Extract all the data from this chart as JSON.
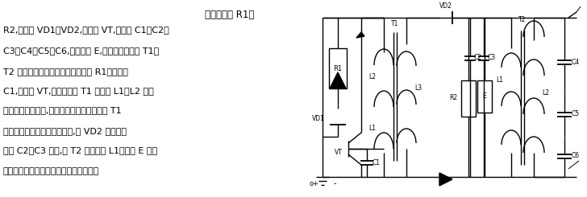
{
  "background_color": "#ffffff",
  "text_color": "#000000",
  "title_line": "电路由电阴 R1、",
  "body_lines": [
    "R2,二极管 VD1、VD2,三极管 VT,电容器 C1、C2、",
    "C3、C4、C5、C6,机械触点 E,升压高压变压器 T1、",
    "T2 等组成。工作原理如下；由电阴 R1、电容器",
    "C1,三极管 VT,升压变压器 T1 的线圈 L1、L2 组成",
    "的电源振荡器电路,将直流电源提供的电能经 T1",
    "变压器输出转换高压脉冲电源,经 VD2 整流向电",
    "容器 C2、C3 充电,由 T2 变压器的 L1、触点 E 形成",
    "二次振荡。由电容器和线圈组成充放电路"
  ],
  "font_size_title": 8.5,
  "font_size_body": 8.0,
  "circuit_color": "#000000",
  "lw": 1.0
}
